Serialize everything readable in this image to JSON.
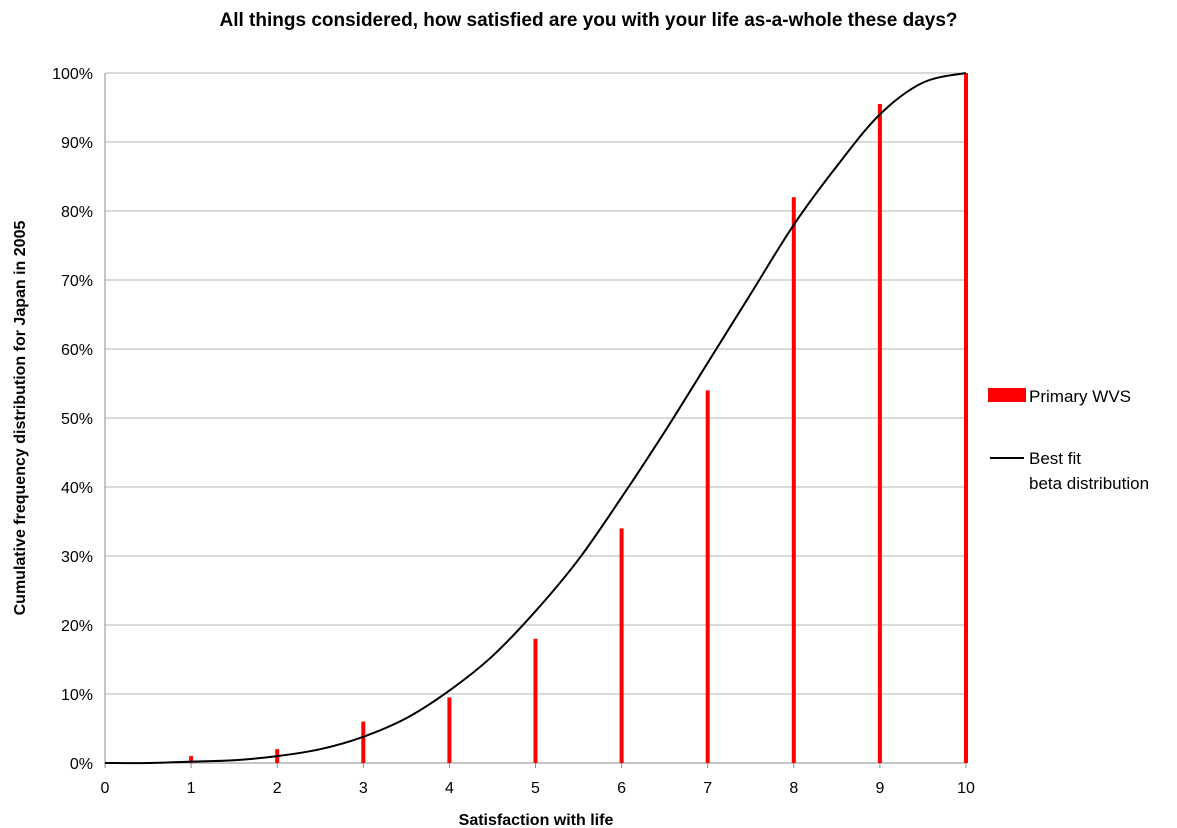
{
  "chart_data": {
    "type": "bar",
    "title": "All things considered, how satisfied are you with your life as-a-whole these days?",
    "xlabel": "Satisfaction with life",
    "ylabel": "Cumulative frequency distribution for Japan in 2005",
    "xlim": [
      0,
      10
    ],
    "ylim": [
      0,
      100
    ],
    "x_ticks": [
      "0",
      "1",
      "2",
      "3",
      "4",
      "5",
      "6",
      "7",
      "8",
      "9",
      "10"
    ],
    "y_ticks": [
      "0%",
      "10%",
      "20%",
      "30%",
      "40%",
      "50%",
      "60%",
      "70%",
      "80%",
      "90%",
      "100%"
    ],
    "grid": true,
    "legend_position": "right",
    "series": [
      {
        "name": "Primary WVS",
        "kind": "bar",
        "color": "#ff0000",
        "x": [
          1,
          2,
          3,
          4,
          5,
          6,
          7,
          8,
          9,
          10
        ],
        "values": [
          1,
          2,
          6,
          9.5,
          18,
          34,
          54,
          82,
          95.5,
          100
        ]
      },
      {
        "name": "Best fit\nbeta distribution",
        "kind": "line",
        "color": "#000000",
        "x": [
          0,
          0.5,
          1,
          1.5,
          2,
          2.5,
          3,
          3.5,
          4,
          4.5,
          5,
          5.5,
          6,
          6.5,
          7,
          7.5,
          8,
          8.5,
          9,
          9.5,
          10
        ],
        "values": [
          0,
          0,
          0.2,
          0.4,
          1,
          2,
          3.8,
          6.5,
          10.5,
          15.5,
          22,
          29.5,
          38.5,
          48,
          58,
          68,
          78,
          86.5,
          94,
          98.6,
          100
        ]
      }
    ]
  }
}
